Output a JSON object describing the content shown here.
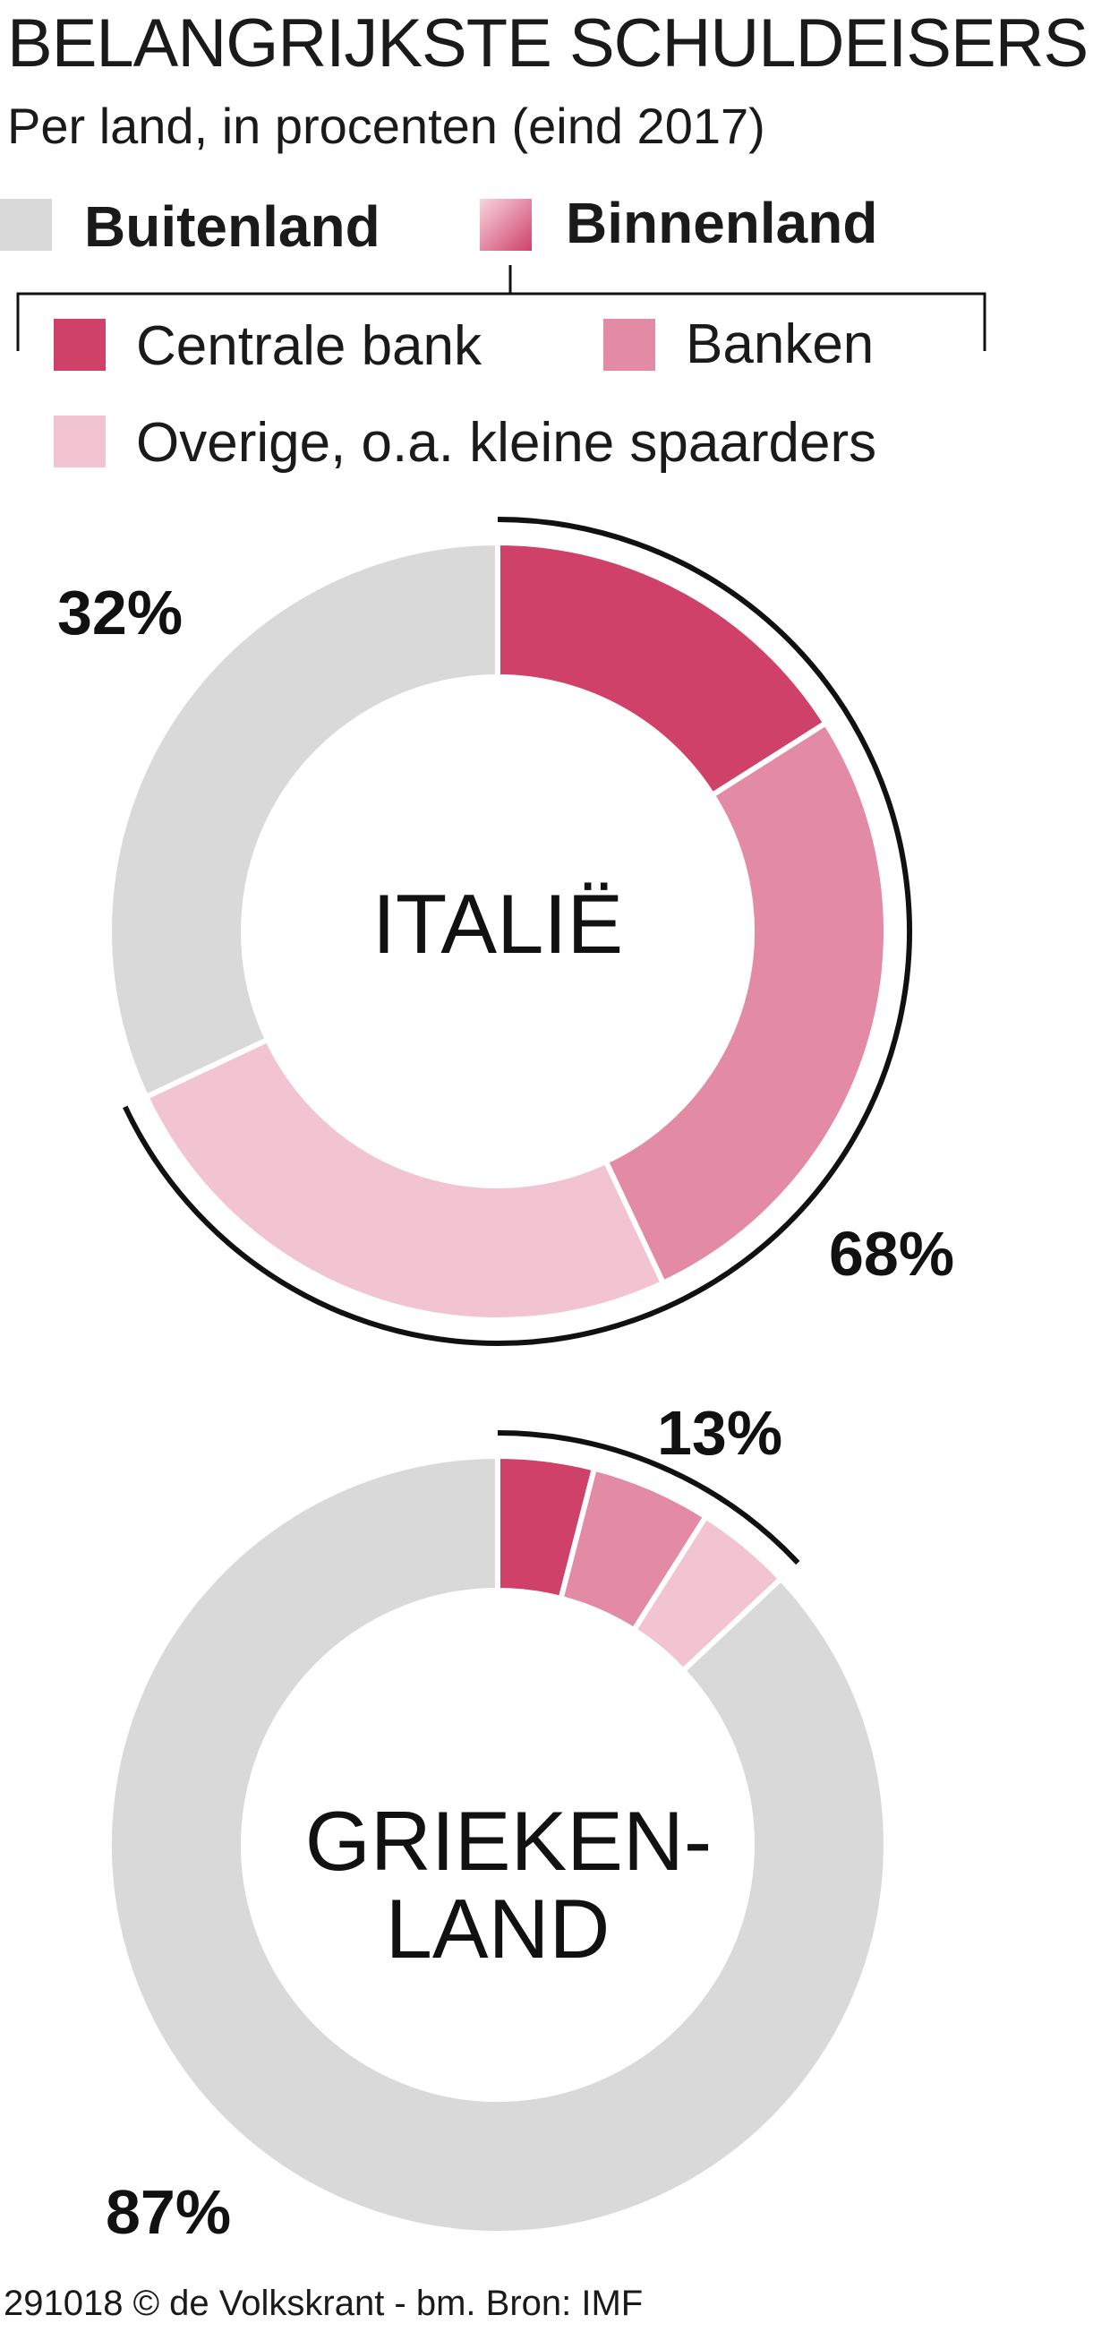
{
  "title": "BELANGRIJKSTE SCHULDEISERS",
  "subtitle": "Per land, in procenten (eind 2017)",
  "legend": {
    "buitenland": "Buitenland",
    "binnenland": "Binnenland",
    "centrale_bank": "Centrale bank",
    "banken": "Banken",
    "overige": "Overige, o.a. kleine spaarders"
  },
  "colors": {
    "buitenland": "#d9d9d9",
    "centrale_bank": "#cf4169",
    "banken": "#e38aa4",
    "overige": "#f2c4d1"
  },
  "source": "291018 © de Volkskrant - bm. Bron: IMF",
  "chart_data": [
    {
      "type": "pie",
      "title": "ITALIË",
      "label_lines": [
        "ITALIË"
      ],
      "categories": [
        "Buitenland",
        "Centrale bank",
        "Banken",
        "Overige, o.a. kleine spaarders"
      ],
      "values": [
        32,
        16,
        27,
        25
      ],
      "group_labels": {
        "buitenland": "32%",
        "binnenland": "68%"
      }
    },
    {
      "type": "pie",
      "title": "GRIEKENLAND",
      "label_lines": [
        "GRIEKEN-",
        "LAND"
      ],
      "categories": [
        "Buitenland",
        "Centrale bank",
        "Banken",
        "Overige, o.a. kleine spaarders"
      ],
      "values": [
        87,
        4,
        5,
        4
      ],
      "group_labels": {
        "buitenland": "87%",
        "binnenland": "13%"
      }
    }
  ]
}
